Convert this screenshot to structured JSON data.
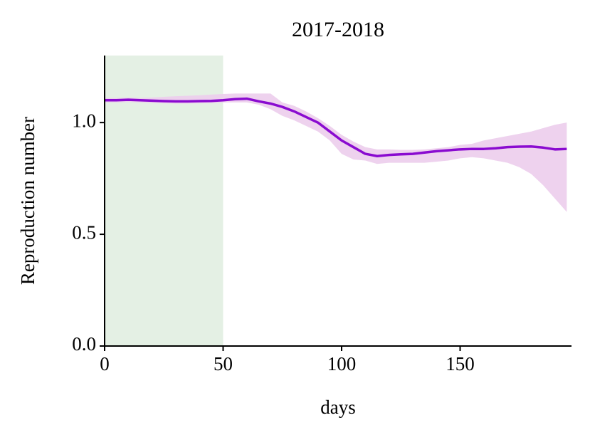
{
  "chart_data": {
    "type": "line",
    "title": "2017-2018",
    "xlabel": "days",
    "ylabel": "Reproduction number",
    "x": [
      0,
      5,
      10,
      15,
      20,
      25,
      30,
      35,
      40,
      45,
      50,
      55,
      60,
      65,
      70,
      75,
      80,
      85,
      90,
      95,
      100,
      105,
      110,
      115,
      120,
      125,
      130,
      135,
      140,
      145,
      150,
      155,
      160,
      165,
      170,
      175,
      180,
      185,
      190,
      195
    ],
    "values": [
      1.1,
      1.1,
      1.102,
      1.1,
      1.098,
      1.096,
      1.095,
      1.095,
      1.096,
      1.097,
      1.1,
      1.105,
      1.107,
      1.095,
      1.085,
      1.07,
      1.05,
      1.025,
      1.0,
      0.96,
      0.92,
      0.89,
      0.86,
      0.85,
      0.855,
      0.858,
      0.86,
      0.866,
      0.872,
      0.876,
      0.88,
      0.882,
      0.882,
      0.885,
      0.89,
      0.892,
      0.893,
      0.888,
      0.88,
      0.882
    ],
    "color": "#8a0bd0",
    "band": {
      "color": "#eccdec",
      "lower": [
        1.09,
        1.09,
        1.092,
        1.09,
        1.088,
        1.086,
        1.085,
        1.085,
        1.086,
        1.087,
        1.09,
        1.09,
        1.09,
        1.08,
        1.06,
        1.03,
        1.01,
        0.985,
        0.96,
        0.92,
        0.86,
        0.835,
        0.83,
        0.815,
        0.82,
        0.82,
        0.82,
        0.82,
        0.825,
        0.83,
        0.84,
        0.845,
        0.84,
        0.83,
        0.82,
        0.8,
        0.77,
        0.72,
        0.66,
        0.6
      ],
      "upper": [
        1.11,
        1.11,
        1.112,
        1.11,
        1.112,
        1.115,
        1.118,
        1.12,
        1.122,
        1.125,
        1.128,
        1.13,
        1.13,
        1.13,
        1.13,
        1.09,
        1.075,
        1.05,
        1.02,
        0.985,
        0.945,
        0.915,
        0.89,
        0.88,
        0.88,
        0.878,
        0.878,
        0.88,
        0.885,
        0.89,
        0.9,
        0.905,
        0.92,
        0.93,
        0.94,
        0.95,
        0.96,
        0.975,
        0.99,
        1.0
      ]
    },
    "shade": [
      0,
      50
    ],
    "shade_color": "#e4f0e4",
    "xlim": [
      0,
      197
    ],
    "xticks": [
      0,
      50,
      100,
      150
    ],
    "ylim": [
      0,
      1.3
    ],
    "yticks": [
      {
        "value": 0,
        "label": "0.0"
      },
      {
        "value": 0.5,
        "label": "0.5"
      },
      {
        "value": 1,
        "label": "1.0"
      }
    ]
  }
}
